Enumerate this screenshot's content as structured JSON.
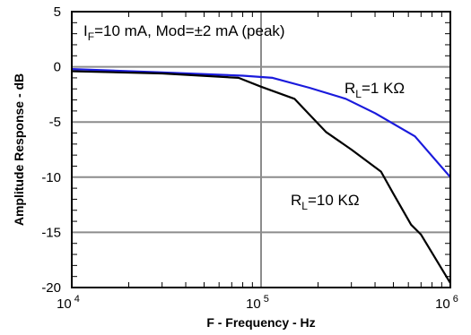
{
  "chart_data": {
    "type": "line",
    "x_scale": "log",
    "xlim": [
      10000,
      1000000
    ],
    "ylim": [
      -20,
      5
    ],
    "grid": true,
    "xlabel": "F - Frequency - Hz",
    "ylabel": "Amplitude Response - dB",
    "x_ticks": [
      {
        "value": 10000,
        "base": "10",
        "exp": "4"
      },
      {
        "value": 100000,
        "base": "10",
        "exp": "5"
      },
      {
        "value": 1000000,
        "base": "10",
        "exp": "6"
      }
    ],
    "y_ticks": [
      5,
      0,
      -5,
      -10,
      -15,
      -20
    ],
    "annotations": [
      {
        "main": "I",
        "sub": "F",
        "rest": "=10 mA, Mod=±2 mA (peak)"
      },
      {
        "main": "R",
        "sub": "L",
        "rest": "=1 KΩ"
      },
      {
        "main": "R",
        "sub": "L",
        "rest": "=10 KΩ"
      }
    ],
    "series": [
      {
        "color": "#1a1adc",
        "x": [
          10000,
          30000,
          80000,
          115000,
          180000,
          280000,
          400000,
          650000,
          1000000
        ],
        "y": [
          -0.2,
          -0.5,
          -0.8,
          -1.0,
          -1.9,
          -2.9,
          -4.2,
          -6.3,
          -10.0
        ]
      },
      {
        "color": "#000000",
        "x": [
          10000,
          30000,
          76000,
          100000,
          150000,
          220000,
          300000,
          430000,
          500000,
          620000,
          700000,
          1000000
        ],
        "y": [
          -0.4,
          -0.6,
          -1.0,
          -1.8,
          -2.9,
          -5.9,
          -7.5,
          -9.5,
          -11.5,
          -14.3,
          -15.2,
          -19.6
        ]
      }
    ]
  }
}
